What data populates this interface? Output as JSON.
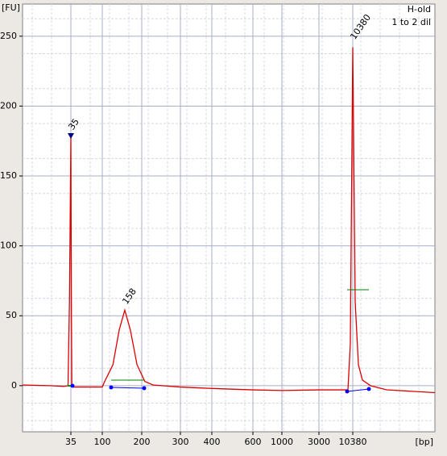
{
  "chart_data": {
    "type": "line",
    "y_label": "[FU]",
    "x_label": "[bp]",
    "sample": "H-old",
    "dilution": "1 to 2 dil",
    "xlim": [
      1,
      30000
    ],
    "xticks": [
      35,
      100,
      200,
      300,
      400,
      600,
      1000,
      3000,
      10380
    ],
    "ylim": [
      -33,
      273
    ],
    "yticks": [
      0,
      50,
      100,
      150,
      200,
      250
    ],
    "grid": true,
    "annotations": [
      {
        "text": "35",
        "color": "#008000"
      },
      {
        "text": "158",
        "color": "#000000"
      },
      {
        "text": "10380",
        "color": "#8030a0"
      }
    ],
    "series": [
      {
        "name": "H-old",
        "color": "#dd0000",
        "x": [
          1,
          20,
          30,
          33,
          34,
          35,
          36,
          37,
          40,
          80,
          100,
          106,
          127,
          143,
          157,
          171,
          188,
          208,
          229,
          300,
          400,
          600,
          1000,
          3000,
          9326,
          9850,
          10380,
          10957,
          11726,
          12690,
          14610,
          18460,
          30000
        ],
        "values": [
          0.5,
          0,
          -0.5,
          0,
          60,
          178,
          60,
          0,
          -1,
          -1,
          -1,
          3,
          15,
          40,
          54,
          40,
          15,
          3,
          0.5,
          -1,
          -2,
          -3,
          -3.5,
          -3,
          -3,
          30,
          242,
          60,
          15,
          4,
          0,
          -3,
          -5
        ]
      }
    ]
  }
}
